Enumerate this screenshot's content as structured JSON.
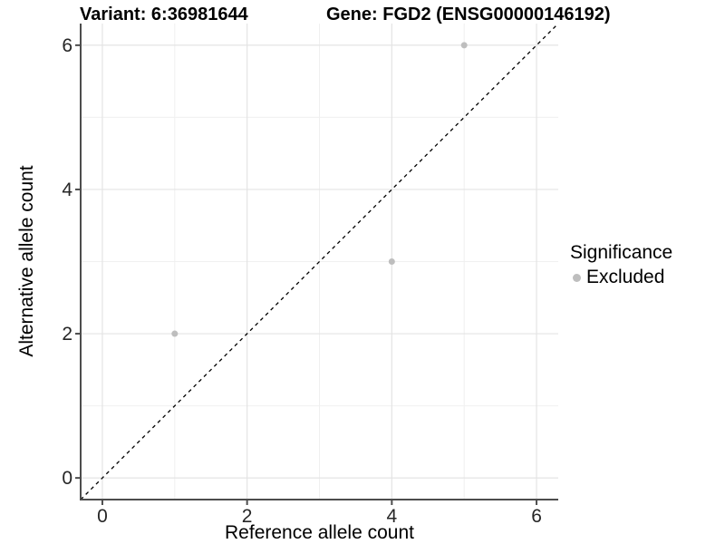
{
  "chart_data": {
    "type": "scatter",
    "title_parts": {
      "variant": "Variant: 6:36981644",
      "gene": "Gene: FGD2 (ENSG00000146192)"
    },
    "xlabel": "Reference allele count",
    "ylabel": "Alternative allele count",
    "xlim": [
      -0.3,
      6.3
    ],
    "ylim": [
      -0.3,
      6.3
    ],
    "xticks": [
      0,
      2,
      4,
      6
    ],
    "yticks": [
      0,
      2,
      4,
      6
    ],
    "x_minor": [
      1,
      3,
      5
    ],
    "y_minor": [
      1,
      3,
      5
    ],
    "grid": true,
    "identity_line": {
      "style": "dashed",
      "from": [
        -0.3,
        -0.3
      ],
      "to": [
        6.3,
        6.3
      ],
      "color": "#000000"
    },
    "series": [
      {
        "name": "Excluded",
        "color": "#bebebe",
        "points": [
          {
            "x": 1,
            "y": 2
          },
          {
            "x": 4,
            "y": 3
          },
          {
            "x": 5,
            "y": 6
          }
        ]
      }
    ],
    "legend": {
      "title": "Significance",
      "position": "right",
      "entries": [
        {
          "label": "Excluded",
          "color": "#bebebe"
        }
      ]
    },
    "colors": {
      "grid_major": "#e4e4e4",
      "grid_minor": "#f0f0f0",
      "axis_line": "#4d4d4d",
      "tick_mark": "#4d4d4d",
      "point": "#bebebe",
      "background": "#ffffff"
    }
  }
}
